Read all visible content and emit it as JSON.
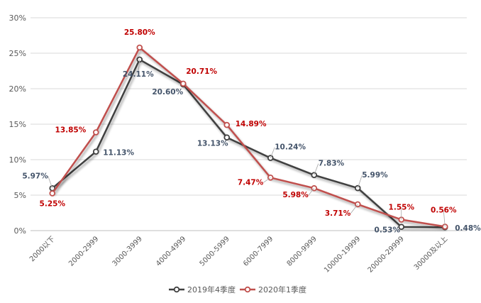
{
  "chart_data": {
    "type": "line",
    "categories": [
      "2000以下",
      "2000-2999",
      "3000-3999",
      "4000-4999",
      "5000-5999",
      "6000-7999",
      "8000-9999",
      "10000-19999",
      "20000-29999",
      "30000及以上"
    ],
    "series": [
      {
        "name": "2019年4季度",
        "color": "#404040",
        "values": [
          5.97,
          11.13,
          24.11,
          20.6,
          13.13,
          10.24,
          7.83,
          5.99,
          0.53,
          0.48
        ],
        "labels": [
          "5.97%",
          "11.13%",
          "24.11%",
          "20.60%",
          "13.13%",
          "10.24%",
          "7.83%",
          "5.99%",
          "0.53%",
          "0.48%"
        ],
        "label_color": "#44546A"
      },
      {
        "name": "2020年1季度",
        "color": "#C0504D",
        "values": [
          5.25,
          13.85,
          25.8,
          20.71,
          14.89,
          7.47,
          5.98,
          3.71,
          1.55,
          0.56
        ],
        "labels": [
          "5.25%",
          "13.85%",
          "25.80%",
          "20.71%",
          "14.89%",
          "7.47%",
          "5.98%",
          "3.71%",
          "1.55%",
          "0.56%"
        ],
        "label_color": "#C00000"
      }
    ],
    "yticks": [
      "0%",
      "5%",
      "10%",
      "15%",
      "20%",
      "25%",
      "30%"
    ],
    "ylim": [
      0,
      30
    ],
    "grid": true,
    "legend_position": "bottom"
  }
}
